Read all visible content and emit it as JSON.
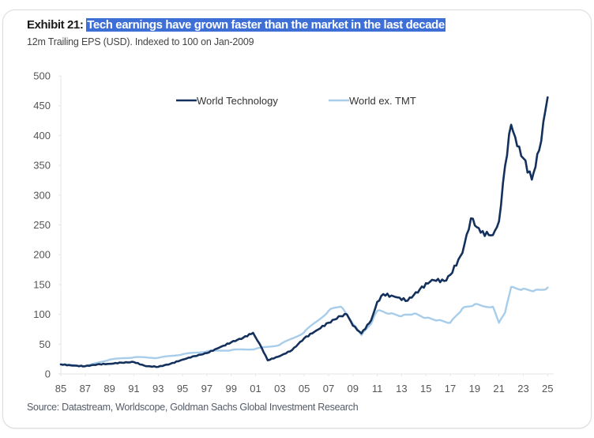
{
  "exhibit_label": "Exhibit 21:",
  "chart_data": {
    "type": "line",
    "title": "Tech earnings have grown faster than the market in the last decade",
    "subtitle": "12m Trailing EPS (USD). Indexed to 100 on Jan-2009",
    "xlabel": "",
    "ylabel": "",
    "xlim": [
      1985,
      2025.5
    ],
    "ylim": [
      0,
      500
    ],
    "yticks": [
      0,
      50,
      100,
      150,
      200,
      250,
      300,
      350,
      400,
      450,
      500
    ],
    "xticks": [
      1985,
      1987,
      1989,
      1991,
      1993,
      1995,
      1997,
      1999,
      2001,
      2003,
      2005,
      2007,
      2009,
      2011,
      2013,
      2015,
      2017,
      2019,
      2021,
      2023,
      2025
    ],
    "xtick_labels": [
      "85",
      "87",
      "89",
      "91",
      "93",
      "95",
      "97",
      "99",
      "01",
      "03",
      "05",
      "07",
      "09",
      "11",
      "13",
      "15",
      "17",
      "19",
      "21",
      "23",
      "25"
    ],
    "ytick_labels": [
      "0",
      "50",
      "100",
      "150",
      "200",
      "250",
      "300",
      "350",
      "400",
      "450",
      "500"
    ],
    "grid": false,
    "legend_position": "top-center",
    "series": [
      {
        "name": "World Technology",
        "color": "#14305c",
        "x": [
          1985,
          1986,
          1987,
          1988,
          1989,
          1990,
          1991,
          1992,
          1993,
          1994,
          1995,
          1996,
          1997,
          1998,
          1999,
          2000,
          2000.8,
          2001.5,
          2002,
          2003,
          2004,
          2005,
          2006,
          2007,
          2008,
          2008.5,
          2009,
          2009.7,
          2010.5,
          2011,
          2011.5,
          2012.5,
          2013.5,
          2014.5,
          2015.5,
          2016.5,
          2017,
          2018,
          2018.7,
          2019.5,
          2020.5,
          2021,
          2021.5,
          2022,
          2022.5,
          2023,
          2023.7,
          2024.3,
          2025
        ],
        "values": [
          16,
          14,
          13,
          16,
          17,
          19,
          20,
          13,
          12,
          17,
          24,
          30,
          35,
          44,
          53,
          61,
          69,
          44,
          23,
          30,
          40,
          60,
          73,
          86,
          97,
          100,
          81,
          68,
          90,
          121,
          134,
          129,
          123,
          142,
          158,
          156,
          166,
          203,
          261,
          237,
          233,
          256,
          349,
          418,
          382,
          362,
          326,
          375,
          464
        ]
      },
      {
        "name": "World ex. TMT",
        "color": "#a7cdea",
        "x": [
          1985,
          1987,
          1989,
          1991,
          1993,
          1995,
          1997,
          1999,
          2001,
          2003,
          2005,
          2007,
          2008,
          2009,
          2009.7,
          2010.5,
          2011,
          2012,
          2013,
          2014,
          2015,
          2016,
          2017,
          2018,
          2019,
          2020.5,
          2021,
          2021.5,
          2022,
          2023,
          2024,
          2025
        ],
        "values": [
          16,
          13,
          24,
          28,
          27,
          33,
          38,
          40,
          42,
          49,
          70,
          106,
          113,
          84,
          65,
          84,
          106,
          101,
          97,
          101,
          94,
          90,
          86,
          110,
          117,
          113,
          86,
          103,
          146,
          143,
          141,
          145
        ]
      }
    ]
  },
  "source": "Source: Datastream, Worldscope, Goldman Sachs Global Investment Research"
}
